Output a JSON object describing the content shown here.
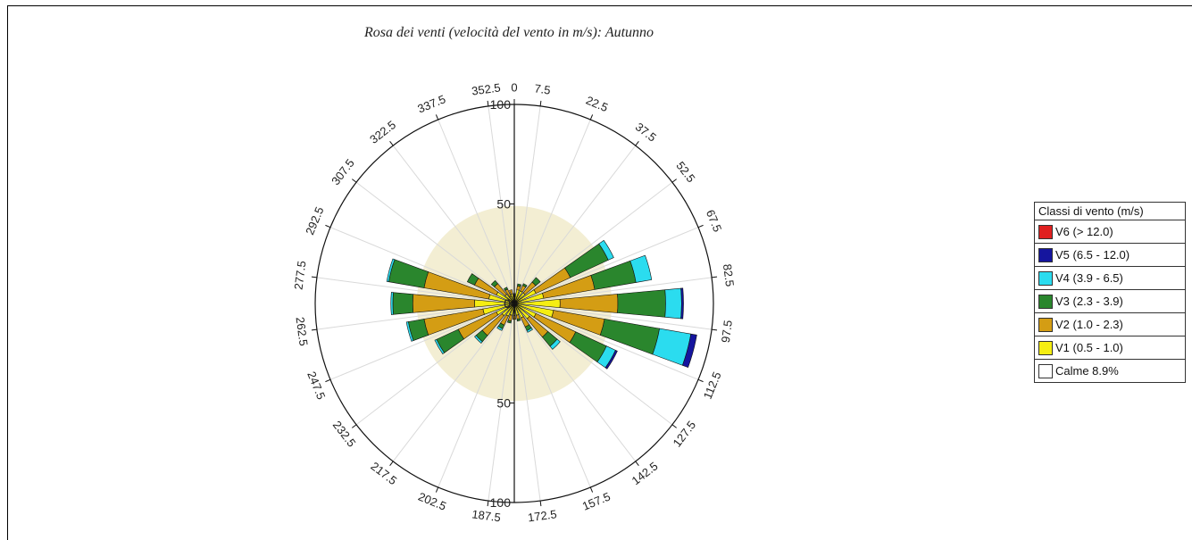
{
  "chart_data": {
    "type": "polar-bar",
    "title": "Rosa dei venti (velocità del vento in m/s): Autunno",
    "r_ticks": [
      "0",
      "50",
      "100"
    ],
    "r_max": 100,
    "direction_labels": [
      "0",
      "7.5",
      "22.5",
      "37.5",
      "52.5",
      "67.5",
      "82.5",
      "97.5",
      "112.5",
      "127.5",
      "142.5",
      "157.5",
      "172.5",
      "187.5",
      "202.5",
      "217.5",
      "232.5",
      "247.5",
      "262.5",
      "277.5",
      "292.5",
      "307.5",
      "322.5",
      "337.5",
      "352.5"
    ],
    "calm_label": "Calme 8.9%",
    "calm_color": "#f3eed3",
    "calm_radius": 49,
    "legend_title": "Classi di vento (m/s)",
    "series": [
      {
        "name": "V1 (0.5 - 1.0)",
        "color": "#f5ee12"
      },
      {
        "name": "V2 (1.0 - 2.3)",
        "color": "#d49d14"
      },
      {
        "name": "V3 (2.3 - 3.9)",
        "color": "#2a862d"
      },
      {
        "name": "V4 (3.9 - 6.5)",
        "color": "#2bdcef"
      },
      {
        "name": "V5 (6.5 - 12.0)",
        "color": "#15159e"
      },
      {
        "name": "V6 (> 12.0)",
        "color": "#e02020"
      }
    ],
    "sectors": [
      {
        "dir": 0,
        "values": [
          4,
          1,
          0,
          0,
          0,
          0
        ]
      },
      {
        "dir": 15,
        "values": [
          7,
          2,
          1,
          0,
          0,
          0
        ]
      },
      {
        "dir": 30,
        "values": [
          7,
          3,
          1,
          0,
          0,
          0
        ]
      },
      {
        "dir": 45,
        "values": [
          7,
          7,
          3,
          0,
          0,
          0
        ]
      },
      {
        "dir": 60,
        "values": [
          12,
          19,
          21,
          3,
          0,
          0
        ]
      },
      {
        "dir": 75,
        "values": [
          15,
          26,
          21,
          8,
          0,
          0
        ]
      },
      {
        "dir": 90,
        "values": [
          23,
          29,
          24,
          8,
          1,
          0
        ]
      },
      {
        "dir": 105,
        "values": [
          20,
          26,
          28,
          16,
          3,
          0
        ]
      },
      {
        "dir": 120,
        "values": [
          12,
          22,
          17,
          5,
          1,
          0
        ]
      },
      {
        "dir": 135,
        "values": [
          10,
          12,
          6,
          2,
          0,
          0
        ]
      },
      {
        "dir": 150,
        "values": [
          8,
          5,
          2,
          1,
          0,
          0
        ]
      },
      {
        "dir": 165,
        "values": [
          6,
          2,
          1,
          0,
          0,
          0
        ]
      },
      {
        "dir": 180,
        "values": [
          6,
          2,
          0,
          0,
          0,
          0
        ]
      },
      {
        "dir": 195,
        "values": [
          6,
          3,
          1,
          0,
          0,
          0
        ]
      },
      {
        "dir": 210,
        "values": [
          7,
          5,
          2,
          1,
          0,
          0
        ]
      },
      {
        "dir": 225,
        "values": [
          8,
          13,
          4,
          1,
          0,
          0
        ]
      },
      {
        "dir": 240,
        "values": [
          10,
          21,
          12,
          1,
          0,
          0
        ]
      },
      {
        "dir": 255,
        "values": [
          16,
          30,
          8,
          1,
          0,
          0
        ]
      },
      {
        "dir": 270,
        "values": [
          20,
          31,
          10,
          1,
          0,
          0
        ]
      },
      {
        "dir": 285,
        "values": [
          13,
          33,
          18,
          1,
          0,
          0
        ]
      },
      {
        "dir": 300,
        "values": [
          10,
          12,
          4,
          0,
          0,
          0
        ]
      },
      {
        "dir": 315,
        "values": [
          6,
          7,
          2,
          0,
          0,
          0
        ]
      },
      {
        "dir": 330,
        "values": [
          4,
          4,
          1,
          0,
          0,
          0
        ]
      },
      {
        "dir": 345,
        "values": [
          5,
          2,
          0,
          0,
          0,
          0
        ]
      }
    ],
    "legend_entries": [
      {
        "label": "V6 (> 12.0)",
        "color": "#e02020"
      },
      {
        "label": "V5 (6.5 - 12.0)",
        "color": "#15159e"
      },
      {
        "label": "V4 (3.9 - 6.5)",
        "color": "#2bdcef"
      },
      {
        "label": "V3 (2.3 - 3.9)",
        "color": "#2a862d"
      },
      {
        "label": "V2 (1.0 - 2.3)",
        "color": "#d49d14"
      },
      {
        "label": "V1 (0.5 - 1.0)",
        "color": "#f5ee12"
      },
      {
        "label": "Calme 8.9%",
        "color": "#ffffff"
      }
    ]
  }
}
